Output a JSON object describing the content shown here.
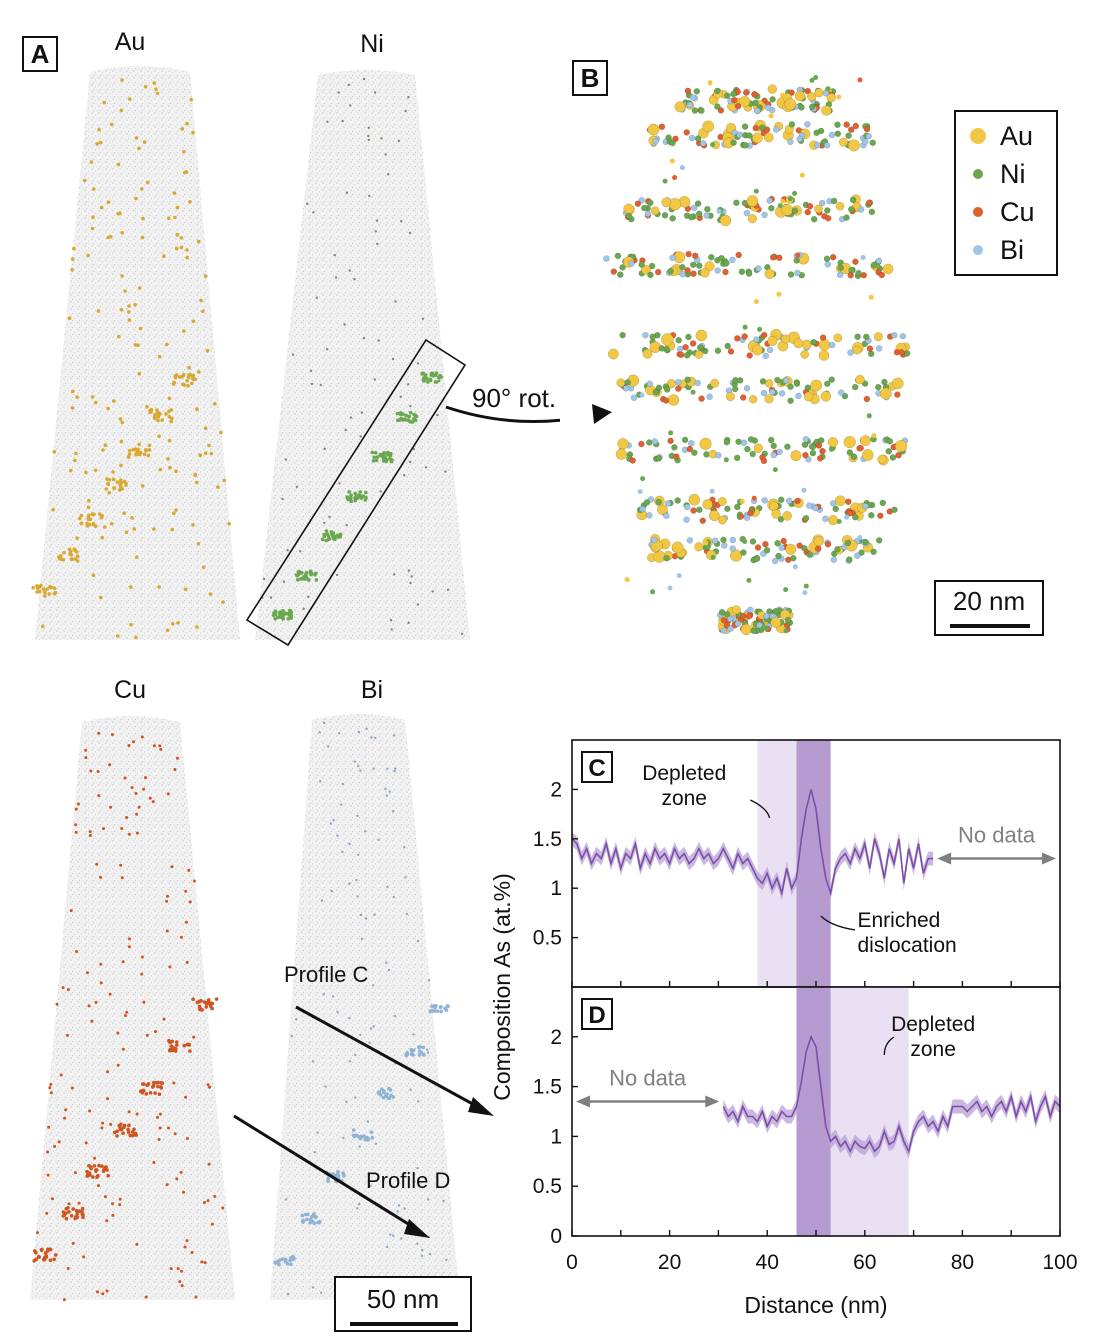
{
  "panels": {
    "A": "A",
    "B": "B",
    "C": "C",
    "D": "D"
  },
  "tips": {
    "Au": "Au",
    "Ni": "Ni",
    "Cu": "Cu",
    "Bi": "Bi"
  },
  "annotations": {
    "rotation": "90° rot.",
    "profile_c": "Profile C",
    "profile_d": "Profile D"
  },
  "legend": [
    {
      "label": "Au",
      "color": "#f2c744"
    },
    {
      "label": "Ni",
      "color": "#6aa84f"
    },
    {
      "label": "Cu",
      "color": "#e06030"
    },
    {
      "label": "Bi",
      "color": "#9fc5e8"
    }
  ],
  "scalebars": {
    "b": "20 nm",
    "a": "50 nm"
  },
  "colors": {
    "profile_line": "#7b4fa6",
    "profile_band": "#b9a0d6",
    "enriched_zone": "#b59bd0",
    "depleted_zone": "#e9e1f3",
    "no_data_arrow": "#808080",
    "ni_cluster": "#6aa84f",
    "au_cluster": "#d9a830",
    "cu_cluster": "#d0541f",
    "bi_cluster": "#8fb3d5"
  },
  "chart_data": [
    {
      "type": "line",
      "panel": "C",
      "ylabel": "Composition As (at.%)",
      "yticks": [
        "0.5",
        "1",
        "1.5",
        "2"
      ],
      "ylim": [
        0,
        2.5
      ],
      "xlim": [
        0,
        100
      ],
      "enriched_zone": [
        46,
        53
      ],
      "depleted_zone": [
        38,
        46
      ],
      "no_data_range": [
        74,
        100
      ],
      "annotations": {
        "depleted": [
          "Depleted",
          "zone"
        ],
        "enriched": [
          "Enriched",
          "dislocation"
        ],
        "no_data": "No data"
      },
      "x": [
        0,
        1,
        2,
        3,
        4,
        5,
        6,
        7,
        8,
        9,
        10,
        11,
        12,
        13,
        14,
        15,
        16,
        17,
        18,
        19,
        20,
        21,
        22,
        23,
        24,
        25,
        26,
        27,
        28,
        29,
        30,
        31,
        32,
        33,
        34,
        35,
        36,
        37,
        38,
        39,
        40,
        41,
        42,
        43,
        44,
        45,
        46,
        47,
        48,
        49,
        50,
        51,
        52,
        53,
        54,
        55,
        56,
        57,
        58,
        59,
        60,
        61,
        62,
        63,
        64,
        65,
        66,
        67,
        68,
        69,
        70,
        71,
        72,
        73,
        74
      ],
      "y": [
        1.5,
        1.45,
        1.3,
        1.4,
        1.25,
        1.35,
        1.3,
        1.45,
        1.25,
        1.4,
        1.2,
        1.35,
        1.3,
        1.45,
        1.2,
        1.35,
        1.25,
        1.4,
        1.3,
        1.35,
        1.25,
        1.4,
        1.3,
        1.35,
        1.25,
        1.3,
        1.4,
        1.3,
        1.35,
        1.25,
        1.3,
        1.4,
        1.3,
        1.2,
        1.35,
        1.25,
        1.3,
        1.2,
        1.1,
        1.05,
        1.15,
        1.0,
        1.1,
        0.95,
        1.2,
        1.0,
        1.1,
        1.5,
        1.8,
        2.0,
        1.8,
        1.4,
        1.1,
        0.95,
        1.2,
        1.3,
        1.35,
        1.25,
        1.4,
        1.3,
        1.45,
        1.2,
        1.5,
        1.35,
        1.1,
        1.4,
        1.25,
        1.5,
        1.05,
        1.4,
        1.2,
        1.45,
        1.15,
        1.3,
        1.3
      ]
    },
    {
      "type": "line",
      "panel": "D",
      "ylabel": "Composition As (at.%)",
      "xlabel": "Distance (nm)",
      "yticks": [
        "0",
        "0.5",
        "1",
        "1.5",
        "2"
      ],
      "xticks": [
        "0",
        "20",
        "40",
        "60",
        "80",
        "100"
      ],
      "ylim": [
        0,
        2.5
      ],
      "xlim": [
        0,
        100
      ],
      "enriched_zone": [
        46,
        53
      ],
      "depleted_zone": [
        53,
        69
      ],
      "no_data_range": [
        0,
        31
      ],
      "annotations": {
        "depleted": [
          "Depleted",
          "zone"
        ],
        "no_data": "No data"
      },
      "x": [
        31,
        32,
        33,
        34,
        35,
        36,
        37,
        38,
        39,
        40,
        41,
        42,
        43,
        44,
        45,
        46,
        47,
        48,
        49,
        50,
        51,
        52,
        53,
        54,
        55,
        56,
        57,
        58,
        59,
        60,
        61,
        62,
        63,
        64,
        65,
        66,
        67,
        68,
        69,
        70,
        71,
        72,
        73,
        74,
        75,
        76,
        77,
        78,
        79,
        80,
        81,
        82,
        83,
        84,
        85,
        86,
        87,
        88,
        89,
        90,
        91,
        92,
        93,
        94,
        95,
        96,
        97,
        98,
        99,
        100
      ],
      "y": [
        1.3,
        1.2,
        1.25,
        1.15,
        1.3,
        1.2,
        1.2,
        1.15,
        1.25,
        1.1,
        1.2,
        1.15,
        1.25,
        1.2,
        1.2,
        1.3,
        1.55,
        1.85,
        2.0,
        1.9,
        1.5,
        1.1,
        0.95,
        1.0,
        0.9,
        0.95,
        0.85,
        0.95,
        0.9,
        0.88,
        0.95,
        0.85,
        0.9,
        1.05,
        0.92,
        0.95,
        1.1,
        0.95,
        0.85,
        1.05,
        1.15,
        1.2,
        1.1,
        1.15,
        1.05,
        1.2,
        1.1,
        1.3,
        1.3,
        1.3,
        1.25,
        1.3,
        1.35,
        1.25,
        1.3,
        1.2,
        1.3,
        1.35,
        1.25,
        1.4,
        1.2,
        1.35,
        1.25,
        1.4,
        1.15,
        1.3,
        1.4,
        1.2,
        1.35,
        1.3
      ]
    }
  ]
}
